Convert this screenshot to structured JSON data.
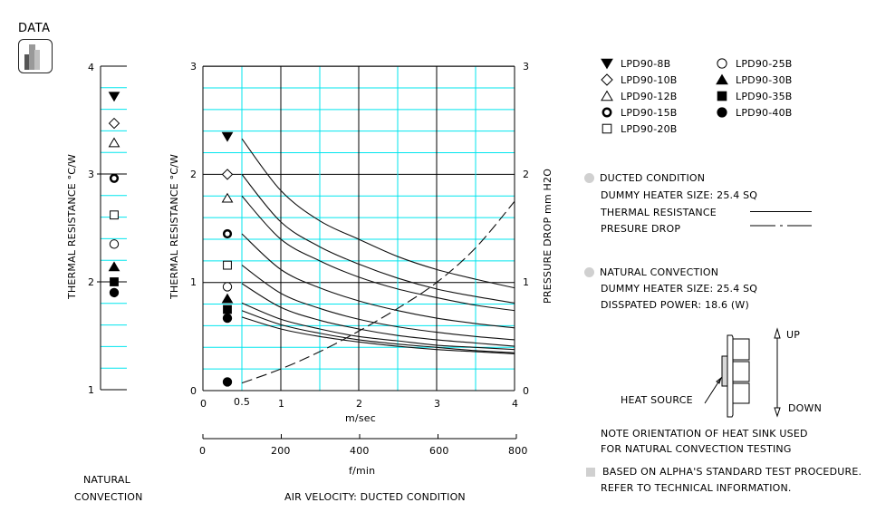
{
  "header": {
    "logo_label": "DATA"
  },
  "left_panel": {
    "ylabel": "THERMAL  RESISTANCE   °C/W",
    "yticks": [
      "4",
      "3",
      "2",
      "1"
    ],
    "caption_line1": "NATURAL",
    "caption_line2": "CONVECTION"
  },
  "main_chart": {
    "ylabel_left": "THERMAL  RESISTANCE   °C/W",
    "ylabel_right": "PRESSURE  DROP    mm H2O",
    "yticks_left": [
      "3",
      "2",
      "1",
      "0"
    ],
    "yticks_right": [
      "3",
      "2",
      "1",
      "0"
    ],
    "xticks_ms": [
      "0",
      "0.5",
      "1",
      "2",
      "3",
      "4"
    ],
    "xunit_ms": "m/sec",
    "xticks_fmin": [
      "0",
      "200",
      "400",
      "600",
      "800"
    ],
    "xunit_fmin": "f/min",
    "caption": "AIR VELOCITY:  DUCTED CONDITION"
  },
  "legend": {
    "items": [
      {
        "marker": "triangle-down-filled",
        "label": "LPD90-8B"
      },
      {
        "marker": "diamond-open",
        "label": "LPD90-10B"
      },
      {
        "marker": "triangle-up-open",
        "label": "LPD90-12B"
      },
      {
        "marker": "circle-bold-ring",
        "label": "LPD90-15B"
      },
      {
        "marker": "square-open",
        "label": "LPD90-20B"
      },
      {
        "marker": "circle-open",
        "label": "LPD90-25B"
      },
      {
        "marker": "triangle-up-filled",
        "label": "LPD90-30B"
      },
      {
        "marker": "square-filled",
        "label": "LPD90-35B"
      },
      {
        "marker": "circle-filled",
        "label": "LPD90-40B"
      }
    ]
  },
  "notes": {
    "ducted_title": "DUCTED CONDITION",
    "ducted_heater": "DUMMY HEATER SIZE:  25.4 SQ",
    "thermal_resistance_label": "THERMAL RESISTANCE",
    "pressure_drop_label": "PRESURE DROP",
    "natural_title": "NATURAL CONVECTION",
    "natural_heater": "DUMMY HEATER SIZE:  25.4 SQ",
    "natural_power": "DISSPATED POWER:   18.6 (W)",
    "heat_source_label": "HEAT SOURCE",
    "up_label": "UP",
    "down_label": "DOWN",
    "orientation_note_1": "NOTE ORIENTATION OF HEAT SINK USED",
    "orientation_note_2": "FOR NATURAL CONVECTION TESTING",
    "procedure_note_1": "BASED ON ALPHA'S STANDARD TEST PROCEDURE.",
    "procedure_note_2": "REFER TO TECHNICAL INFORMATION."
  },
  "colors": {
    "grid_minor": "#00e5ee",
    "grid_major": "#000000",
    "bullet_gray": "#d0d0d0"
  },
  "chart_data": [
    {
      "type": "scatter",
      "title": "NATURAL CONVECTION",
      "ylabel": "THERMAL RESISTANCE °C/W",
      "ylim": [
        1,
        4
      ],
      "series": [
        {
          "name": "LPD90-8B",
          "marker": "triangle-down-filled",
          "value": 3.72
        },
        {
          "name": "LPD90-10B",
          "marker": "diamond-open",
          "value": 3.47
        },
        {
          "name": "LPD90-12B",
          "marker": "triangle-up-open",
          "value": 3.29
        },
        {
          "name": "LPD90-15B",
          "marker": "circle-bold-ring",
          "value": 2.96
        },
        {
          "name": "LPD90-20B",
          "marker": "square-open",
          "value": 2.62
        },
        {
          "name": "LPD90-25B",
          "marker": "circle-open",
          "value": 2.35
        },
        {
          "name": "LPD90-30B",
          "marker": "triangle-up-filled",
          "value": 2.14
        },
        {
          "name": "LPD90-35B",
          "marker": "square-filled",
          "value": 2.0
        },
        {
          "name": "LPD90-40B",
          "marker": "circle-filled",
          "value": 1.9
        }
      ]
    },
    {
      "type": "line",
      "title": "AIR VELOCITY: DUCTED CONDITION",
      "xlabel": "m/sec",
      "xlabel_secondary": "f/min",
      "ylabel": "THERMAL RESISTANCE °C/W",
      "ylabel_right": "PRESSURE DROP mm H2O",
      "xlim": [
        0,
        4
      ],
      "ylim": [
        0,
        3
      ],
      "ylim_right": [
        0,
        3
      ],
      "grid": true,
      "x": [
        0.5,
        1,
        1.5,
        2,
        2.5,
        3,
        3.5,
        4
      ],
      "series": [
        {
          "name": "LPD90-8B",
          "axis": "left",
          "start_marker": 2.35,
          "values": [
            2.33,
            1.85,
            1.57,
            1.4,
            1.24,
            1.12,
            1.03,
            0.95
          ]
        },
        {
          "name": "LPD90-10B",
          "axis": "left",
          "start_marker": 2.0,
          "values": [
            2.0,
            1.56,
            1.33,
            1.17,
            1.04,
            0.94,
            0.87,
            0.81
          ]
        },
        {
          "name": "LPD90-12B",
          "axis": "left",
          "start_marker": 1.78,
          "values": [
            1.8,
            1.4,
            1.2,
            1.05,
            0.94,
            0.86,
            0.79,
            0.74
          ]
        },
        {
          "name": "LPD90-15B",
          "axis": "left",
          "start_marker": 1.45,
          "values": [
            1.45,
            1.12,
            0.95,
            0.83,
            0.74,
            0.67,
            0.62,
            0.58
          ]
        },
        {
          "name": "LPD90-20B",
          "axis": "left",
          "start_marker": 1.16,
          "values": [
            1.16,
            0.9,
            0.76,
            0.66,
            0.59,
            0.54,
            0.5,
            0.47
          ]
        },
        {
          "name": "LPD90-25B",
          "axis": "left",
          "start_marker": 0.96,
          "values": [
            0.99,
            0.77,
            0.65,
            0.57,
            0.51,
            0.47,
            0.44,
            0.41
          ]
        },
        {
          "name": "LPD90-30B",
          "axis": "left",
          "start_marker": 0.85,
          "values": [
            0.81,
            0.66,
            0.57,
            0.5,
            0.46,
            0.42,
            0.4,
            0.38
          ]
        },
        {
          "name": "LPD90-35B",
          "axis": "left",
          "start_marker": 0.75,
          "values": [
            0.74,
            0.61,
            0.53,
            0.47,
            0.43,
            0.4,
            0.37,
            0.35
          ]
        },
        {
          "name": "LPD90-40B",
          "axis": "left",
          "start_marker": 0.67,
          "values": [
            0.68,
            0.57,
            0.5,
            0.45,
            0.41,
            0.38,
            0.36,
            0.34
          ]
        },
        {
          "name": "Pressure Drop",
          "axis": "right",
          "style": "dashed",
          "start_marker": 0.08,
          "values": [
            0.07,
            0.2,
            0.36,
            0.55,
            0.76,
            1.0,
            1.32,
            1.75
          ]
        }
      ],
      "secondary_x_axis": {
        "label": "f/min",
        "ticks": [
          0,
          200,
          400,
          600,
          800
        ]
      }
    }
  ]
}
